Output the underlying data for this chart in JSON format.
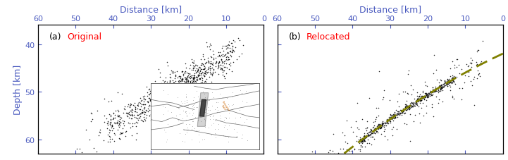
{
  "fig_width": 7.21,
  "fig_height": 2.28,
  "dpi": 100,
  "bg_color": "#ffffff",
  "panel_a_label": "(a)",
  "panel_b_label": "(b)",
  "panel_a_title": "Original",
  "panel_b_title": "Relocated",
  "title_color": "#ff0000",
  "label_color": "#000000",
  "axis_label_color": "#4a5abf",
  "tick_color": "#4a5abf",
  "xlabel": "Distance [km]",
  "ylabel": "Depth [km]",
  "xlim": [
    0,
    60
  ],
  "ylim_bottom": 63,
  "ylim_top": 36,
  "xticks": [
    0,
    10,
    20,
    30,
    40,
    50,
    60
  ],
  "yticks": [
    40,
    50,
    60
  ],
  "dashed_line_color": "#808000",
  "scatter_color": "#000000",
  "scatter_size": 1.2,
  "scatter_alpha": 0.85
}
